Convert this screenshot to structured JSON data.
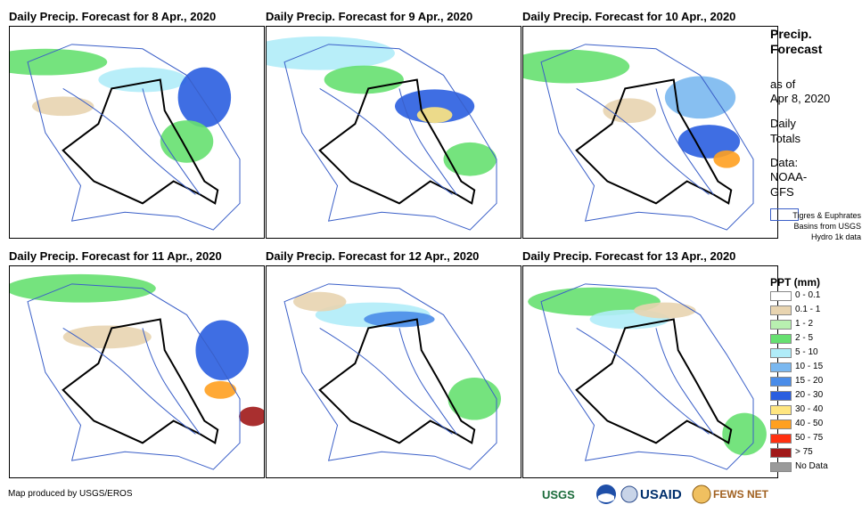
{
  "panels": [
    {
      "title": "Daily Precip. Forecast for 8 Apr., 2020"
    },
    {
      "title": "Daily Precip. Forecast for 9 Apr., 2020"
    },
    {
      "title": "Daily Precip. Forecast for 10 Apr., 2020"
    },
    {
      "title": "Daily Precip. Forecast for 11 Apr., 2020"
    },
    {
      "title": "Daily Precip. Forecast for 12 Apr., 2020"
    },
    {
      "title": "Daily Precip. Forecast for 13 Apr., 2020"
    }
  ],
  "sidebar": {
    "title": "Precip. Forecast",
    "as_of_label": "as of",
    "as_of_date": "Apr 8, 2020",
    "period": "Daily Totals",
    "data_label": "Data:",
    "data_source": "NOAA-GFS",
    "basins_label": "Tigres & Euphrates Basins from USGS Hydro 1k data"
  },
  "legend": {
    "title": "PPT (mm)",
    "items": [
      {
        "label": "0 - 0.1",
        "color": "#ffffff"
      },
      {
        "label": "0.1 - 1",
        "color": "#e8d4b0"
      },
      {
        "label": "1 - 2",
        "color": "#b8f0b0"
      },
      {
        "label": "2 - 5",
        "color": "#66e070"
      },
      {
        "label": "5 - 10",
        "color": "#b0ecf8"
      },
      {
        "label": "10 - 15",
        "color": "#7ab8f0"
      },
      {
        "label": "15 - 20",
        "color": "#4a8ce8"
      },
      {
        "label": "20 - 30",
        "color": "#2a5ee0"
      },
      {
        "label": "30 - 40",
        "color": "#ffe680"
      },
      {
        "label": "40 - 50",
        "color": "#ffa020"
      },
      {
        "label": "50 - 75",
        "color": "#ff3010"
      },
      {
        "label": "> 75",
        "color": "#a01818"
      },
      {
        "label": "No Data",
        "color": "#9a9a9a"
      }
    ]
  },
  "footer": {
    "credit": "Map produced by USGS/EROS"
  },
  "logos": {
    "usgs": "USGS",
    "usaid": "USAID",
    "fewsnet": "FEWS NET"
  }
}
